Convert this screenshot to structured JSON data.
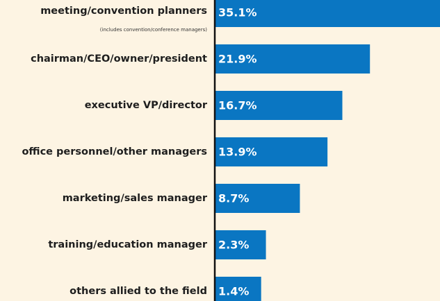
{
  "chart_data": {
    "type": "bar",
    "orientation": "horizontal",
    "categories": [
      "meeting/convention planners",
      "chairman/CEO/owner/president",
      "executive VP/director",
      "office personnel/other managers",
      "marketing/sales manager",
      "training/education manager",
      "others allied to the field"
    ],
    "annotations": [
      "(includes convention/conference managers)"
    ],
    "values": [
      35.1,
      21.9,
      16.7,
      13.9,
      8.7,
      2.3,
      1.4
    ],
    "value_labels": [
      "35.1%",
      "21.9%",
      "16.7%",
      "13.9%",
      "8.7%",
      "2.3%",
      "1.4%"
    ],
    "color": "#0a76c2"
  }
}
